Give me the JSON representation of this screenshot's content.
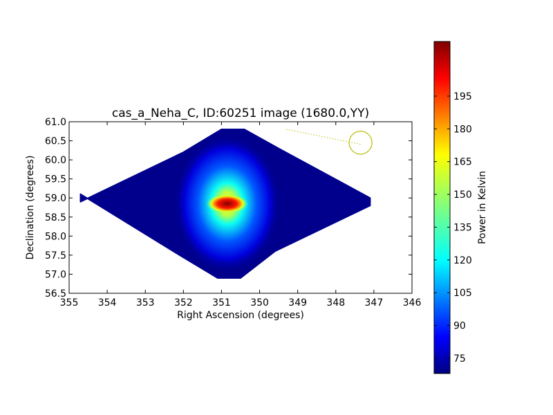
{
  "chart_data": {
    "type": "heatmap",
    "title": "cas_a_Neha_C, ID:60251 image (1680.0,YY)",
    "xlabel": "Right Ascension (degrees)",
    "ylabel": "Declination (degrees)",
    "xlim": [
      355,
      346
    ],
    "ylim": [
      56.5,
      61.0
    ],
    "x_ticks": [
      355,
      354,
      353,
      352,
      351,
      350,
      349,
      348,
      347,
      346
    ],
    "y_ticks": [
      56.5,
      57.0,
      57.5,
      58.0,
      58.5,
      59.0,
      59.5,
      60.0,
      60.5,
      61.0
    ],
    "x_tick_labels": [
      "355",
      "354",
      "353",
      "352",
      "351",
      "350",
      "349",
      "348",
      "347",
      "346"
    ],
    "y_tick_labels": [
      "56.5",
      "57.0",
      "57.5",
      "58.0",
      "58.5",
      "59.0",
      "59.5",
      "60.0",
      "60.5",
      "61.0"
    ],
    "colormap": "jet",
    "colorbar": {
      "label": "Power in Kelvin",
      "range": [
        68,
        220
      ],
      "ticks": [
        75,
        90,
        105,
        120,
        135,
        150,
        165,
        180,
        195
      ],
      "tick_labels": [
        "75",
        "90",
        "105",
        "120",
        "135",
        "150",
        "165",
        "180",
        "195"
      ]
    },
    "sky_coverage_polygon": [
      [
        354.7,
        58.9
      ],
      [
        352.0,
        60.2
      ],
      [
        351.0,
        60.8
      ],
      [
        350.4,
        60.8
      ],
      [
        349.5,
        60.3
      ],
      [
        347.1,
        59.0
      ],
      [
        347.1,
        58.8
      ],
      [
        349.6,
        57.6
      ],
      [
        350.5,
        56.9
      ],
      [
        351.1,
        56.9
      ],
      [
        352.1,
        57.5
      ],
      [
        354.7,
        59.1
      ]
    ],
    "background_level": 70,
    "source": {
      "ra": 350.85,
      "dec": 58.85,
      "peak": 220,
      "core_width_ra": 0.35,
      "core_width_dec": 0.15
    },
    "annotation_circle": {
      "ra": 347.35,
      "dec": 60.45,
      "radius_deg": 0.3,
      "color": "#b8b800"
    },
    "annotation_line": {
      "from": [
        349.3,
        60.8
      ],
      "to": [
        347.3,
        60.4
      ],
      "color": "#b8b800",
      "style": "dotted"
    }
  }
}
